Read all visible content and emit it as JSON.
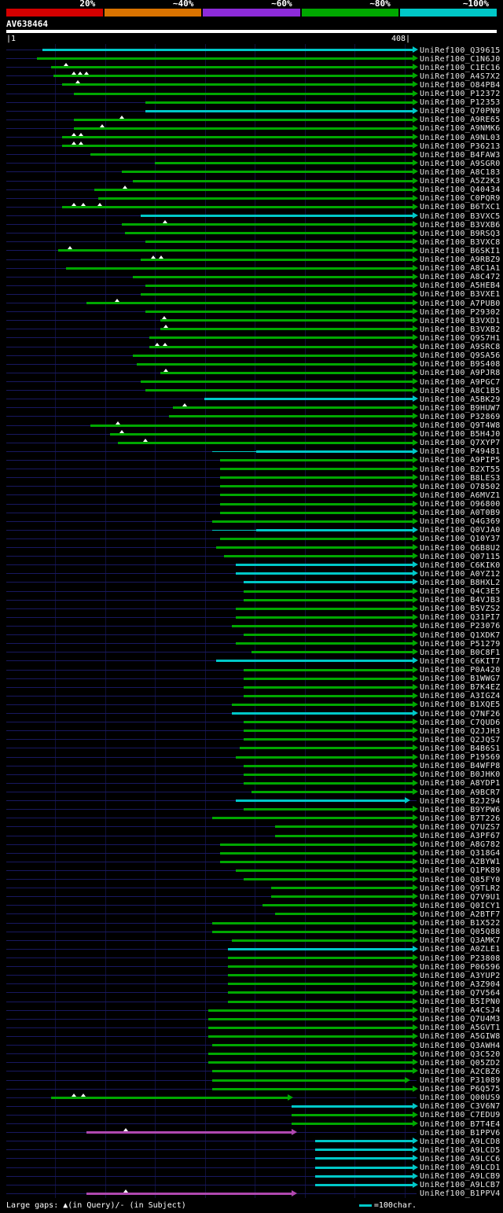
{
  "header": {
    "query_name": "AV638464",
    "scale_start": "|1",
    "scale_end": "408|",
    "scale_segments": [
      {
        "label": "20%",
        "color": "#d40000"
      },
      {
        "label": "~40%",
        "color": "#d97300"
      },
      {
        "label": "~60%",
        "color": "#8d2bd9"
      },
      {
        "label": "~80%",
        "color": "#00a800"
      },
      {
        "label": "~100%",
        "color": "#00c8c8"
      }
    ]
  },
  "footer": {
    "gaps_legend": "Large gaps: ▲(in Query)/- (in Subject)",
    "char_legend": "=100char."
  },
  "chart_data": {
    "type": "bar",
    "subtype": "horizontal alignment spans (BLAST-style graphical overview, colored by % identity)",
    "title": "AV638464",
    "x_range": [
      1,
      408
    ],
    "gridline_interval": 50,
    "legend_position": "top",
    "query": {
      "name": "AV638464",
      "length": 408
    },
    "colors": {
      "green": "#00a800",
      "cyan": "#00c8c8",
      "magenta": "#b048b0"
    },
    "row_fields": {
      "l": "hit label",
      "c": "color key (identity class)",
      "s": "alignment start in query coords",
      "e": "alignment end (default 408)",
      "t": "large-gap triangle positions",
      "p": "thin leading line start"
    },
    "rows": [
      {
        "l": "UniRef100_Q39615",
        "c": "cyan",
        "s": 37
      },
      {
        "l": "UniRef100_C1N6J0",
        "c": "green",
        "s": 32
      },
      {
        "l": "UniRef100_C1EC16",
        "c": "green",
        "s": 46,
        "t": [
          61
        ]
      },
      {
        "l": "UniRef100_A4S7X2",
        "c": "green",
        "s": 48,
        "t": [
          69,
          75,
          81
        ]
      },
      {
        "l": "UniRef100_O84PB4",
        "c": "green",
        "s": 57,
        "t": [
          73
        ]
      },
      {
        "l": "UniRef100_P12372",
        "c": "green",
        "s": 69
      },
      {
        "l": "UniRef100_P12353",
        "c": "green",
        "s": 140
      },
      {
        "l": "UniRef100_Q70PN9",
        "c": "cyan",
        "s": 140
      },
      {
        "l": "UniRef100_A9RE65",
        "c": "green",
        "s": 69,
        "t": [
          117
        ]
      },
      {
        "l": "UniRef100_A9NMK6",
        "c": "green",
        "s": 69,
        "t": [
          97
        ]
      },
      {
        "l": "UniRef100_A9NL03",
        "c": "green",
        "s": 57,
        "t": [
          69,
          76
        ]
      },
      {
        "l": "UniRef100_P36213",
        "c": "green",
        "s": 57,
        "t": [
          69,
          76
        ]
      },
      {
        "l": "UniRef100_B4FAW3",
        "c": "green",
        "s": 85
      },
      {
        "l": "UniRef100_A9SGR0",
        "c": "green",
        "s": 150
      },
      {
        "l": "UniRef100_A8C183",
        "c": "green",
        "s": 117
      },
      {
        "l": "UniRef100_A5Z2K3",
        "c": "green",
        "s": 128
      },
      {
        "l": "UniRef100_Q40434",
        "c": "green",
        "s": 89,
        "t": [
          120
        ]
      },
      {
        "l": "UniRef100_C0PQR9",
        "c": "green",
        "s": 93
      },
      {
        "l": "UniRef100_B6TXC1",
        "c": "green",
        "s": 57,
        "t": [
          69,
          78,
          95
        ]
      },
      {
        "l": "UniRef100_B3VXC5",
        "c": "cyan",
        "s": 136
      },
      {
        "l": "UniRef100_B3VXB6",
        "c": "green",
        "s": 117,
        "t": [
          160
        ]
      },
      {
        "l": "UniRef100_B9RSQ3",
        "c": "green",
        "s": 120
      },
      {
        "l": "UniRef100_B3VXC8",
        "c": "green",
        "s": 140
      },
      {
        "l": "UniRef100_B6SKI1",
        "c": "green",
        "s": 53,
        "t": [
          65
        ]
      },
      {
        "l": "UniRef100_A9RBZ9",
        "c": "green",
        "s": 136,
        "t": [
          148,
          156
        ]
      },
      {
        "l": "UniRef100_A8C1A1",
        "c": "green",
        "s": 61
      },
      {
        "l": "UniRef100_A8C472",
        "c": "green",
        "s": 128
      },
      {
        "l": "UniRef100_A5HEB4",
        "c": "green",
        "s": 140
      },
      {
        "l": "UniRef100_B3VXE1",
        "c": "green",
        "s": 136
      },
      {
        "l": "UniRef100_A7PUB0",
        "c": "green",
        "s": 81,
        "t": [
          112
        ]
      },
      {
        "l": "UniRef100_P29302",
        "c": "green",
        "s": 140
      },
      {
        "l": "UniRef100_B3VXD1",
        "c": "green",
        "s": 155,
        "t": [
          159
        ]
      },
      {
        "l": "UniRef100_B3VXB2",
        "c": "green",
        "s": 155,
        "t": [
          161
        ]
      },
      {
        "l": "UniRef100_Q9S7H1",
        "c": "green",
        "s": 144
      },
      {
        "l": "UniRef100_A9SRC8",
        "c": "green",
        "s": 144,
        "t": [
          152,
          160
        ]
      },
      {
        "l": "UniRef100_Q9SA56",
        "c": "green",
        "s": 128
      },
      {
        "l": "UniRef100_B9S408",
        "c": "green",
        "s": 132
      },
      {
        "l": "UniRef100_A9PJR8",
        "c": "green",
        "s": 155,
        "t": [
          161
        ]
      },
      {
        "l": "UniRef100_A9PGC7",
        "c": "green",
        "s": 136
      },
      {
        "l": "UniRef100_A8C1B5",
        "c": "green",
        "s": 140
      },
      {
        "l": "UniRef100_A5BK29",
        "c": "cyan",
        "s": 199
      },
      {
        "l": "UniRef100_B9HUW7",
        "c": "green",
        "s": 168,
        "t": [
          180
        ]
      },
      {
        "l": "UniRef100_P32869",
        "c": "green",
        "s": 164
      },
      {
        "l": "UniRef100_Q9T4W8",
        "c": "green",
        "s": 85,
        "t": [
          113
        ]
      },
      {
        "l": "UniRef100_B5H4J0",
        "c": "green",
        "s": 105,
        "t": [
          117
        ]
      },
      {
        "l": "UniRef100_Q7XYP7",
        "c": "green",
        "s": 113,
        "t": [
          140
        ]
      },
      {
        "l": "UniRef100_P49481",
        "c": "cyan",
        "s": 251,
        "p": 207
      },
      {
        "l": "UniRef100_A9PIP5",
        "c": "green",
        "s": 215
      },
      {
        "l": "UniRef100_B2XT55",
        "c": "green",
        "s": 215
      },
      {
        "l": "UniRef100_B8LES3",
        "c": "green",
        "s": 215
      },
      {
        "l": "UniRef100_O78502",
        "c": "green",
        "s": 215
      },
      {
        "l": "UniRef100_A6MVZ1",
        "c": "green",
        "s": 215
      },
      {
        "l": "UniRef100_O96800",
        "c": "green",
        "s": 215
      },
      {
        "l": "UniRef100_A0T0B9",
        "c": "green",
        "s": 215
      },
      {
        "l": "UniRef100_Q4G369",
        "c": "green",
        "s": 207
      },
      {
        "l": "UniRef100_Q0VJA0",
        "c": "cyan",
        "s": 251,
        "p": 207
      },
      {
        "l": "UniRef100_Q10Y37",
        "c": "green",
        "s": 215
      },
      {
        "l": "UniRef100_Q6B8U2",
        "c": "green",
        "s": 211
      },
      {
        "l": "UniRef100_Q07115",
        "c": "green",
        "s": 219
      },
      {
        "l": "UniRef100_C6KIK0",
        "c": "cyan",
        "s": 231
      },
      {
        "l": "UniRef100_A0YZ12",
        "c": "cyan",
        "s": 231
      },
      {
        "l": "UniRef100_B8HXL2",
        "c": "cyan",
        "s": 239
      },
      {
        "l": "UniRef100_Q4C3E5",
        "c": "green",
        "s": 239
      },
      {
        "l": "UniRef100_B4VJB3",
        "c": "green",
        "s": 239
      },
      {
        "l": "UniRef100_B5VZS2",
        "c": "green",
        "s": 231
      },
      {
        "l": "UniRef100_Q31PI7",
        "c": "green",
        "s": 231
      },
      {
        "l": "UniRef100_P23076",
        "c": "green",
        "s": 227
      },
      {
        "l": "UniRef100_Q1XDK7",
        "c": "green",
        "s": 239
      },
      {
        "l": "UniRef100_P51279",
        "c": "green",
        "s": 231
      },
      {
        "l": "UniRef100_B0C8F1",
        "c": "green",
        "s": 247
      },
      {
        "l": "UniRef100_C6KIT7",
        "c": "cyan",
        "s": 211
      },
      {
        "l": "UniRef100_P0A420",
        "c": "green",
        "s": 239
      },
      {
        "l": "UniRef100_B1WWG7",
        "c": "green",
        "s": 239
      },
      {
        "l": "UniRef100_B7K4EZ",
        "c": "green",
        "s": 239
      },
      {
        "l": "UniRef100_A3IGZ4",
        "c": "green",
        "s": 239
      },
      {
        "l": "UniRef100_B1XQE5",
        "c": "green",
        "s": 227
      },
      {
        "l": "UniRef100_Q7NF26",
        "c": "cyan",
        "s": 227
      },
      {
        "l": "UniRef100_C7QUD6",
        "c": "green",
        "s": 239
      },
      {
        "l": "UniRef100_Q2JJH3",
        "c": "green",
        "s": 239
      },
      {
        "l": "UniRef100_Q2JQS7",
        "c": "green",
        "s": 239
      },
      {
        "l": "UniRef100_B4B6S1",
        "c": "green",
        "s": 235
      },
      {
        "l": "UniRef100_P19569",
        "c": "green",
        "s": 231
      },
      {
        "l": "UniRef100_B4WFP8",
        "c": "green",
        "s": 239
      },
      {
        "l": "UniRef100_B0JHK0",
        "c": "green",
        "s": 239
      },
      {
        "l": "UniRef100_A8YDP1",
        "c": "green",
        "s": 239
      },
      {
        "l": "UniRef100_A9BCR7",
        "c": "green",
        "s": 247
      },
      {
        "l": "UniRef100_B2J294",
        "c": "cyan",
        "s": 231,
        "e": 400
      },
      {
        "l": "UniRef100_B9YPW6",
        "c": "green",
        "s": 239
      },
      {
        "l": "UniRef100_B7T226",
        "c": "green",
        "s": 207
      },
      {
        "l": "UniRef100_Q7UZS7",
        "c": "green",
        "s": 270
      },
      {
        "l": "UniRef100_A3PF67",
        "c": "green",
        "s": 270
      },
      {
        "l": "UniRef100_A8G782",
        "c": "green",
        "s": 215
      },
      {
        "l": "UniRef100_Q318G4",
        "c": "green",
        "s": 215
      },
      {
        "l": "UniRef100_A2BYW1",
        "c": "green",
        "s": 215
      },
      {
        "l": "UniRef100_Q1PK89",
        "c": "green",
        "s": 231
      },
      {
        "l": "UniRef100_Q85FY0",
        "c": "green",
        "s": 239
      },
      {
        "l": "UniRef100_Q9TLR2",
        "c": "green",
        "s": 266
      },
      {
        "l": "UniRef100_Q7V9U1",
        "c": "green",
        "s": 266
      },
      {
        "l": "UniRef100_Q0ICY1",
        "c": "green",
        "s": 258
      },
      {
        "l": "UniRef100_A2BTF7",
        "c": "green",
        "s": 270
      },
      {
        "l": "UniRef100_B1X522",
        "c": "green",
        "s": 207
      },
      {
        "l": "UniRef100_Q05Q88",
        "c": "green",
        "s": 207
      },
      {
        "l": "UniRef100_Q3AMK7",
        "c": "green",
        "s": 227
      },
      {
        "l": "UniRef100_A0ZLE1",
        "c": "cyan",
        "s": 223
      },
      {
        "l": "UniRef100_P23808",
        "c": "green",
        "s": 223
      },
      {
        "l": "UniRef100_P06596",
        "c": "green",
        "s": 223
      },
      {
        "l": "UniRef100_A3YUP2",
        "c": "green",
        "s": 223
      },
      {
        "l": "UniRef100_A3Z904",
        "c": "green",
        "s": 223
      },
      {
        "l": "UniRef100_Q7V564",
        "c": "green",
        "s": 223
      },
      {
        "l": "UniRef100_B5IPN0",
        "c": "green",
        "s": 223
      },
      {
        "l": "UniRef100_A4CSJ4",
        "c": "green",
        "s": 203
      },
      {
        "l": "UniRef100_Q7U4M3",
        "c": "green",
        "s": 203
      },
      {
        "l": "UniRef100_A5GVT1",
        "c": "green",
        "s": 203
      },
      {
        "l": "UniRef100_A5GIW8",
        "c": "green",
        "s": 203
      },
      {
        "l": "UniRef100_Q3AWH4",
        "c": "green",
        "s": 207
      },
      {
        "l": "UniRef100_Q3C520",
        "c": "green",
        "s": 203
      },
      {
        "l": "UniRef100_Q05ZD2",
        "c": "green",
        "s": 203
      },
      {
        "l": "UniRef100_A2CBZ6",
        "c": "green",
        "s": 207
      },
      {
        "l": "UniRef100_P31089",
        "c": "green",
        "s": 207,
        "e": 400
      },
      {
        "l": "UniRef100_P6Q575",
        "c": "green",
        "s": 207
      },
      {
        "l": "UniRef100_Q00US9",
        "c": "green",
        "s": 46,
        "e": 283,
        "t": [
          69,
          78
        ]
      },
      {
        "l": "UniRef100_C3V6N7",
        "c": "cyan",
        "s": 287
      },
      {
        "l": "UniRef100_C7EDU9",
        "c": "green",
        "s": 287
      },
      {
        "l": "UniRef100_B7T4E4",
        "c": "green",
        "s": 287
      },
      {
        "l": "UniRef100_B1PPV6",
        "c": "magenta",
        "s": 81,
        "e": 287,
        "t": [
          121
        ]
      },
      {
        "l": "UniRef100_A9LCD8",
        "c": "cyan",
        "s": 310
      },
      {
        "l": "UniRef100_A9LCD5",
        "c": "cyan",
        "s": 310
      },
      {
        "l": "UniRef100_A9LCC6",
        "c": "cyan",
        "s": 310
      },
      {
        "l": "UniRef100_A9LCD1",
        "c": "cyan",
        "s": 310
      },
      {
        "l": "UniRef100_A9LCB9",
        "c": "cyan",
        "s": 310
      },
      {
        "l": "UniRef100_A9LCB7",
        "c": "cyan",
        "s": 310
      },
      {
        "l": "UniRef100_B1PPV4",
        "c": "magenta",
        "s": 81,
        "e": 287,
        "t": [
          121
        ]
      }
    ]
  }
}
